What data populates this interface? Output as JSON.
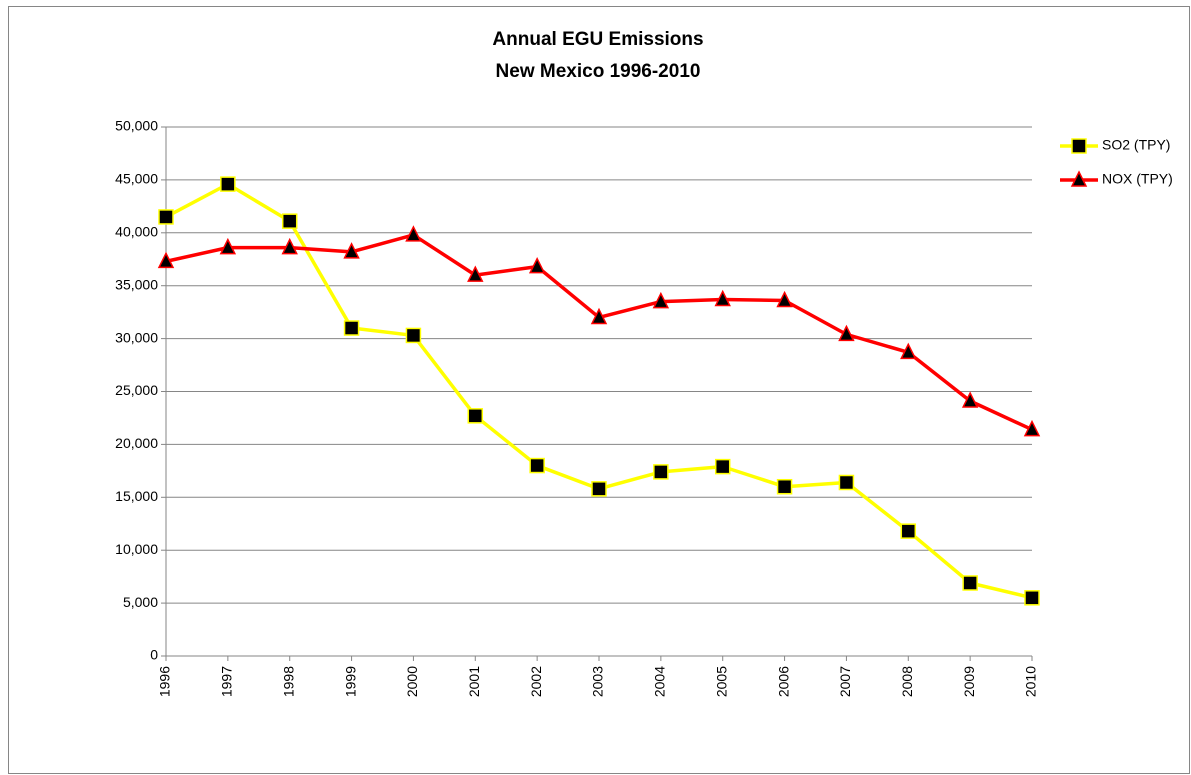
{
  "chart_data": {
    "type": "line",
    "title": "Annual EGU Emissions",
    "subtitle": "New Mexico 1996-2010",
    "categories": [
      "1996",
      "1997",
      "1998",
      "1999",
      "2000",
      "2001",
      "2002",
      "2003",
      "2004",
      "2005",
      "2006",
      "2007",
      "2008",
      "2009",
      "2010"
    ],
    "series": [
      {
        "name": "SO2 (TPY)",
        "color": "#ffff00",
        "marker": "square",
        "values": [
          41500,
          44600,
          41100,
          31000,
          30300,
          22700,
          18000,
          15800,
          17400,
          17900,
          16000,
          16400,
          11800,
          6900,
          5500
        ]
      },
      {
        "name": "NOX (TPY)",
        "color": "#ff0000",
        "marker": "triangle",
        "values": [
          37300,
          38600,
          38600,
          38200,
          39800,
          36000,
          36800,
          32000,
          33500,
          33700,
          33600,
          30400,
          28700,
          24100,
          21400
        ]
      }
    ],
    "ylim": [
      0,
      50000
    ],
    "yticks": [
      0,
      {
        "value": 5000,
        "label": "5,000"
      },
      {
        "value": 10000,
        "label": "10,000"
      },
      {
        "value": 15000,
        "label": "15,000"
      },
      {
        "value": 20000,
        "label": "20,000"
      },
      {
        "value": 25000,
        "label": "25,000"
      },
      {
        "value": 30000,
        "label": "30,000"
      },
      {
        "value": 35000,
        "label": "35,000"
      },
      {
        "value": 40000,
        "label": "40,000"
      },
      {
        "value": 45000,
        "label": "45,000"
      },
      {
        "value": 50000,
        "label": "50,000"
      }
    ],
    "grid": true,
    "legend": "right"
  }
}
